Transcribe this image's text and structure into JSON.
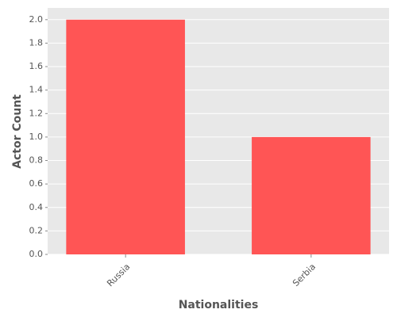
{
  "chart_data": {
    "type": "bar",
    "x_label": "Nationalities",
    "y_label": "Actor Count",
    "categories": [
      "Russia",
      "Serbia"
    ],
    "values": [
      2,
      1
    ],
    "color": "#ff5555",
    "ylim": [
      0,
      2.1
    ],
    "yticks": [
      {
        "value": 0,
        "label": "0.0"
      },
      {
        "value": 0.2,
        "label": "0.2"
      },
      {
        "value": 0.4,
        "label": "0.4"
      },
      {
        "value": 0.6,
        "label": "0.6"
      },
      {
        "value": 0.8,
        "label": "0.8"
      },
      {
        "value": 1,
        "label": "1.0"
      },
      {
        "value": 1.2,
        "label": "1.2"
      },
      {
        "value": 1.4,
        "label": "1.4"
      },
      {
        "value": 1.6,
        "label": "1.6"
      },
      {
        "value": 1.8,
        "label": "1.8"
      },
      {
        "value": 2,
        "label": "2.0"
      }
    ],
    "grid": true
  }
}
